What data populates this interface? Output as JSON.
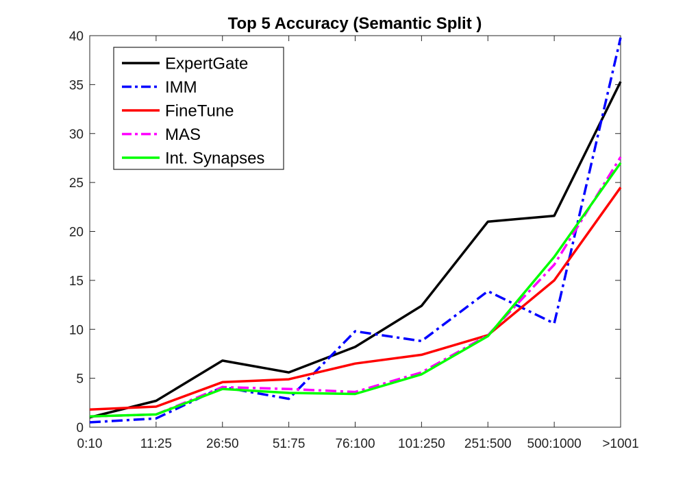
{
  "chart_data": {
    "type": "line",
    "title": "Top 5 Accuracy (Semantic Split )",
    "xlabel": "",
    "ylabel": "",
    "categories": [
      "0:10",
      "11:25",
      "26:50",
      "51:75",
      "76:100",
      "101:250",
      "251:500",
      "500:1000",
      ">1001"
    ],
    "ylim": [
      0,
      40
    ],
    "yticks": [
      0,
      5,
      10,
      15,
      20,
      25,
      30,
      35,
      40
    ],
    "grid": false,
    "legend_position": "top-left",
    "series": [
      {
        "name": "ExpertGate",
        "color": "#000000",
        "dash": "solid",
        "values": [
          1.0,
          2.7,
          6.8,
          5.6,
          8.2,
          12.4,
          21.0,
          21.6,
          35.3
        ]
      },
      {
        "name": "IMM",
        "color": "#0000ff",
        "dash": "dashdot",
        "values": [
          0.5,
          0.9,
          4.1,
          2.9,
          9.8,
          8.8,
          13.9,
          10.6,
          39.8
        ]
      },
      {
        "name": "FineTune",
        "color": "#ff0000",
        "dash": "solid",
        "values": [
          1.8,
          2.1,
          4.6,
          4.9,
          6.5,
          7.4,
          9.4,
          15.0,
          24.5
        ]
      },
      {
        "name": "MAS",
        "color": "#ff00ff",
        "dash": "dashdot",
        "values": [
          1.1,
          1.3,
          4.1,
          3.9,
          3.6,
          5.6,
          9.4,
          16.6,
          27.6
        ]
      },
      {
        "name": "Int. Synapses",
        "color": "#00ff00",
        "dash": "solid",
        "values": [
          1.1,
          1.3,
          3.9,
          3.5,
          3.4,
          5.4,
          9.3,
          17.4,
          27.0
        ]
      }
    ]
  }
}
